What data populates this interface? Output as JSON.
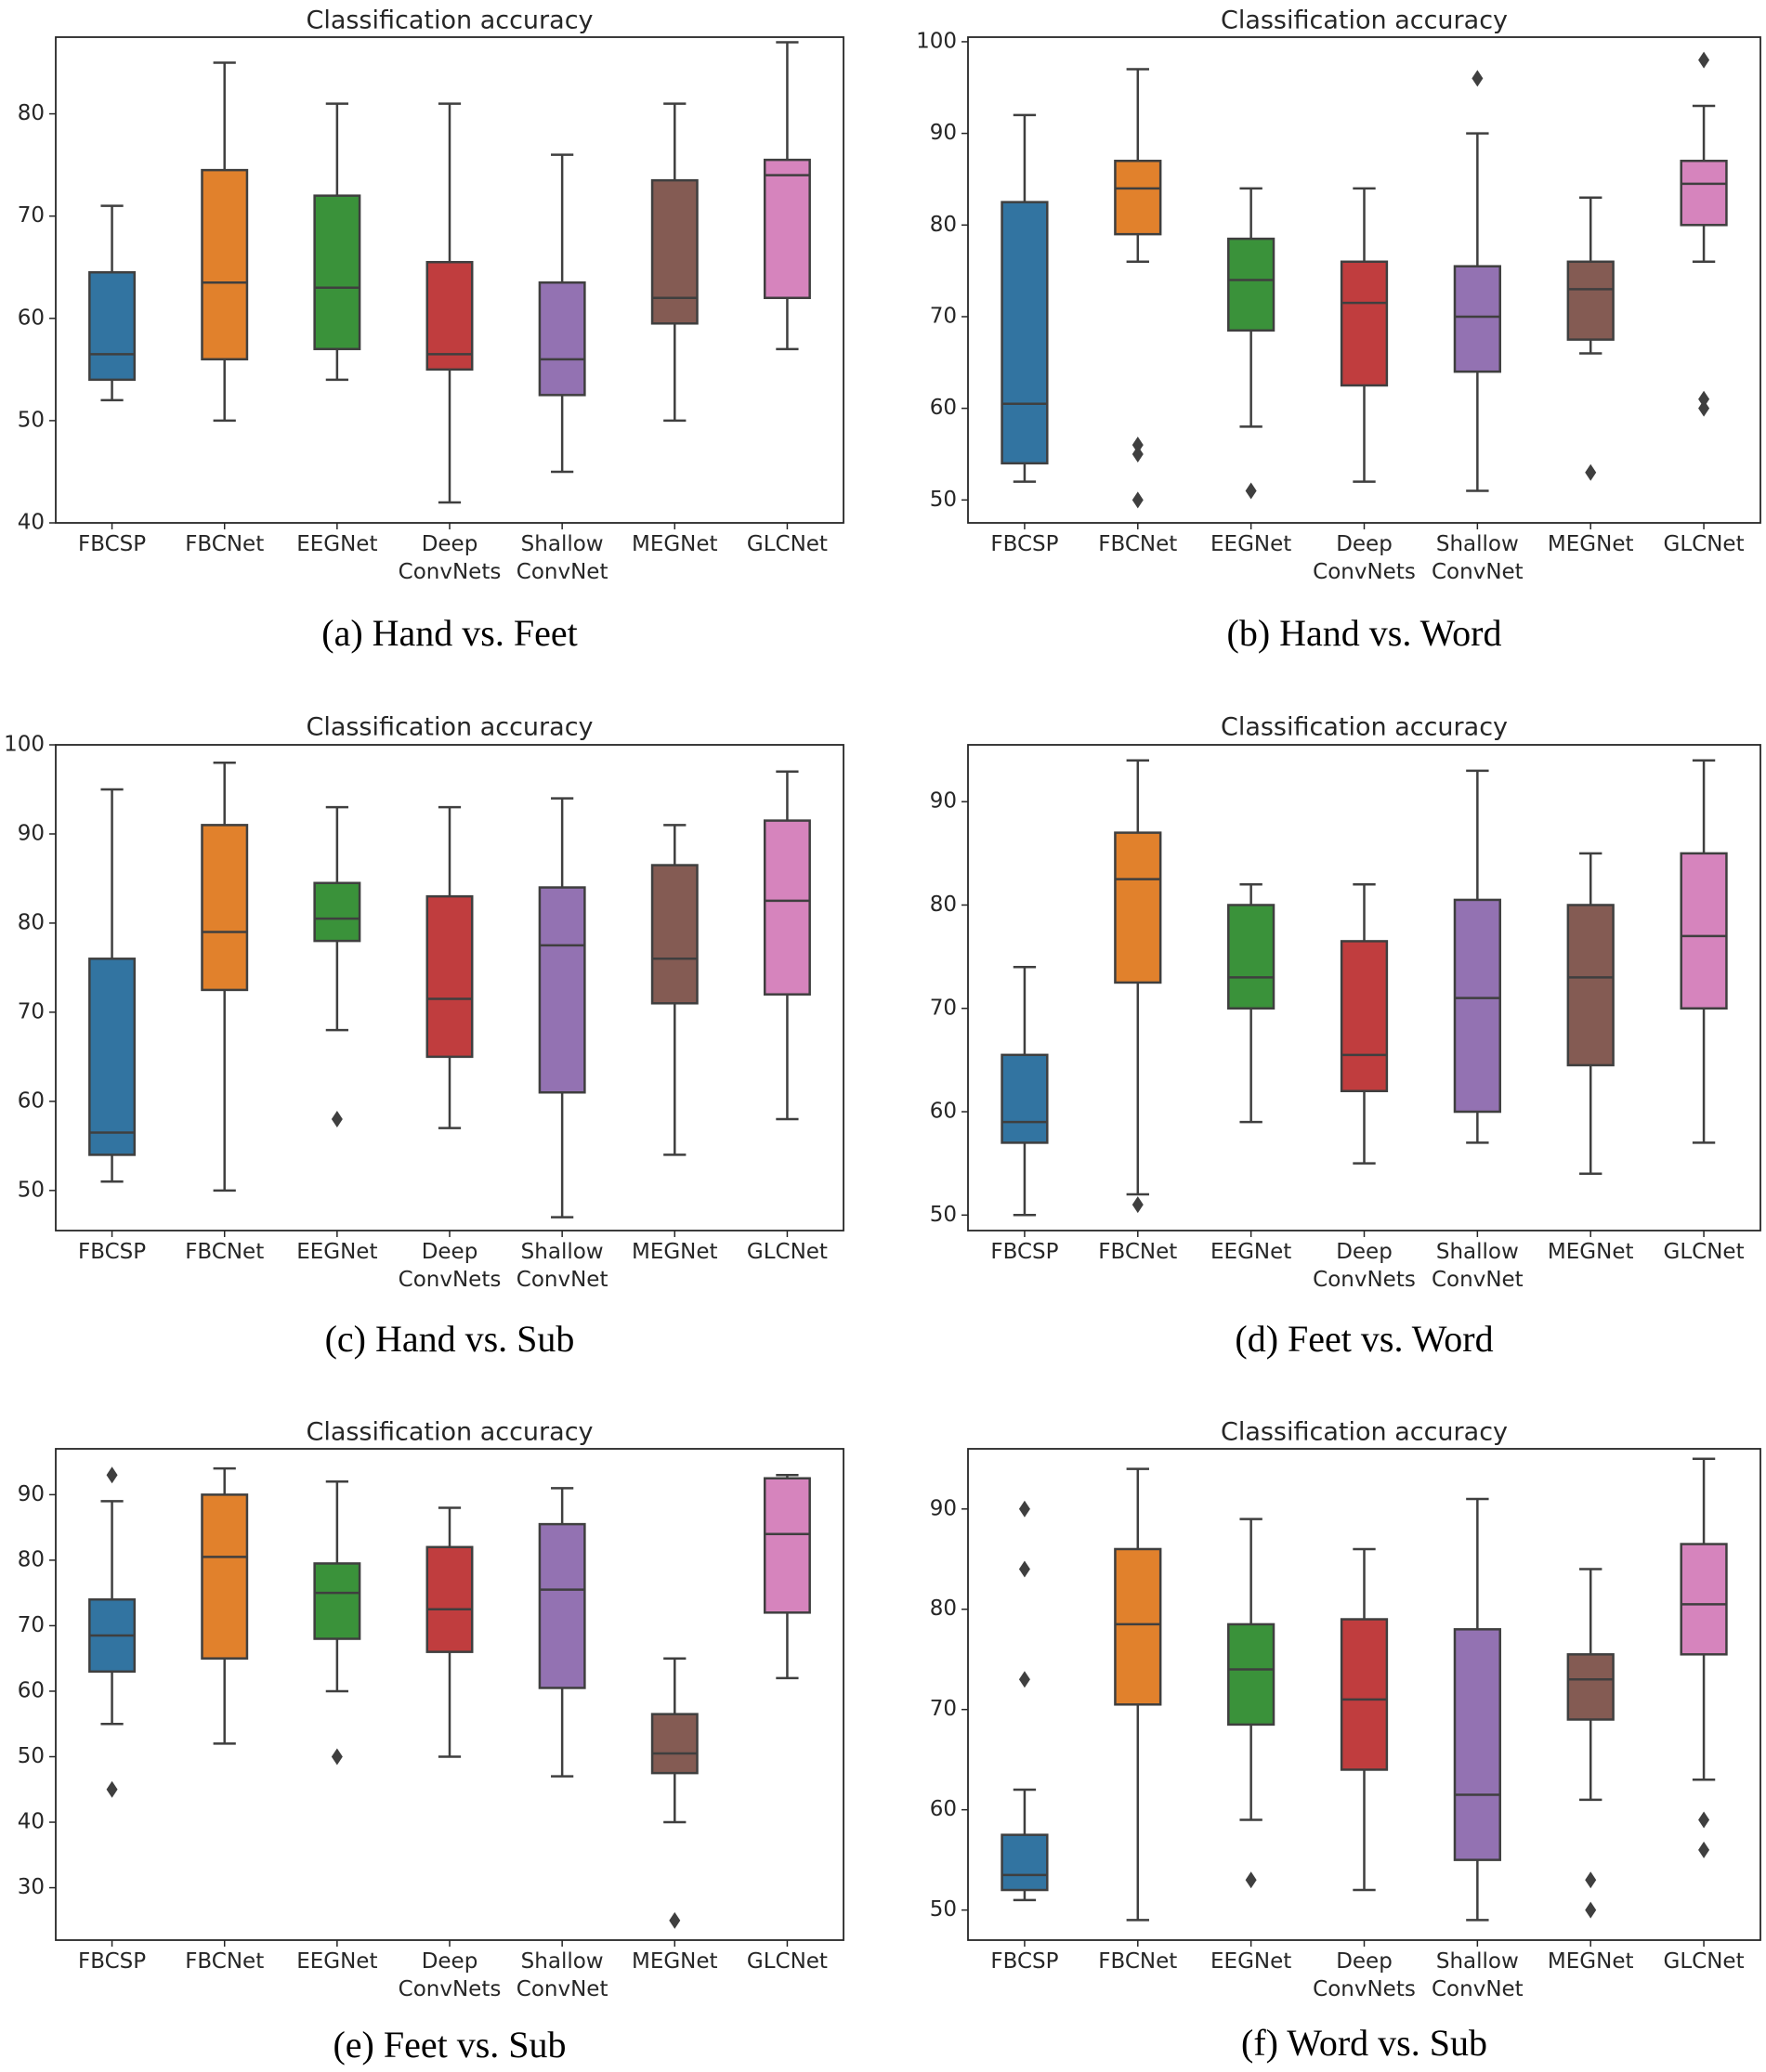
{
  "chart_data": [
    {
      "type": "box",
      "title": "Classification accuracy",
      "caption": "(a) Hand vs. Feet",
      "ylim": [
        40,
        87.5
      ],
      "yticks": [
        40,
        50,
        60,
        70,
        80
      ],
      "categories": [
        "FBCSP",
        "FBCNet",
        "EEGNet",
        "Deep ConvNets",
        "Shallow ConvNet",
        "MEGNet",
        "GLCNet"
      ],
      "boxes": [
        {
          "min": 52,
          "q1": 54,
          "median": 56.5,
          "q3": 64.5,
          "max": 71,
          "outliers": []
        },
        {
          "min": 50,
          "q1": 56,
          "median": 63.5,
          "q3": 74.5,
          "max": 85,
          "outliers": []
        },
        {
          "min": 54,
          "q1": 57,
          "median": 63,
          "q3": 72,
          "max": 81,
          "outliers": []
        },
        {
          "min": 42,
          "q1": 55,
          "median": 56.5,
          "q3": 65.5,
          "max": 81,
          "outliers": []
        },
        {
          "min": 45,
          "q1": 52.5,
          "median": 56,
          "q3": 63.5,
          "max": 76,
          "outliers": []
        },
        {
          "min": 50,
          "q1": 59.5,
          "median": 62,
          "q3": 73.5,
          "max": 81,
          "outliers": []
        },
        {
          "min": 57,
          "q1": 62,
          "median": 74,
          "q3": 75.5,
          "max": 87,
          "outliers": []
        }
      ]
    },
    {
      "type": "box",
      "title": "Classification accuracy",
      "caption": "(b) Hand vs. Word",
      "ylim": [
        47.5,
        100.5
      ],
      "yticks": [
        50,
        60,
        70,
        80,
        90,
        100
      ],
      "categories": [
        "FBCSP",
        "FBCNet",
        "EEGNet",
        "Deep ConvNets",
        "Shallow ConvNet",
        "MEGNet",
        "GLCNet"
      ],
      "boxes": [
        {
          "min": 52,
          "q1": 54,
          "median": 60.5,
          "q3": 82.5,
          "max": 92,
          "outliers": []
        },
        {
          "min": 76,
          "q1": 79,
          "median": 84,
          "q3": 87,
          "max": 97,
          "outliers": [
            56,
            55,
            50
          ]
        },
        {
          "min": 58,
          "q1": 68.5,
          "median": 74,
          "q3": 78.5,
          "max": 84,
          "outliers": [
            51
          ]
        },
        {
          "min": 52,
          "q1": 62.5,
          "median": 71.5,
          "q3": 76,
          "max": 84,
          "outliers": []
        },
        {
          "min": 51,
          "q1": 64,
          "median": 70,
          "q3": 75.5,
          "max": 90,
          "outliers": [
            96
          ]
        },
        {
          "min": 66,
          "q1": 67.5,
          "median": 73,
          "q3": 76,
          "max": 83,
          "outliers": [
            53
          ]
        },
        {
          "min": 76,
          "q1": 80,
          "median": 84.5,
          "q3": 87,
          "max": 93,
          "outliers": [
            98,
            61,
            60
          ]
        }
      ]
    },
    {
      "type": "box",
      "title": "Classification accuracy",
      "caption": "(c) Hand vs. Sub",
      "ylim": [
        45.5,
        100
      ],
      "yticks": [
        50,
        60,
        70,
        80,
        90,
        100
      ],
      "categories": [
        "FBCSP",
        "FBCNet",
        "EEGNet",
        "Deep ConvNets",
        "Shallow ConvNet",
        "MEGNet",
        "GLCNet"
      ],
      "boxes": [
        {
          "min": 51,
          "q1": 54,
          "median": 56.5,
          "q3": 76,
          "max": 95,
          "outliers": []
        },
        {
          "min": 50,
          "q1": 72.5,
          "median": 79,
          "q3": 91,
          "max": 98,
          "outliers": []
        },
        {
          "min": 68,
          "q1": 78,
          "median": 80.5,
          "q3": 84.5,
          "max": 93,
          "outliers": [
            58
          ]
        },
        {
          "min": 57,
          "q1": 65,
          "median": 71.5,
          "q3": 83,
          "max": 93,
          "outliers": []
        },
        {
          "min": 47,
          "q1": 61,
          "median": 77.5,
          "q3": 84,
          "max": 94,
          "outliers": []
        },
        {
          "min": 54,
          "q1": 71,
          "median": 76,
          "q3": 86.5,
          "max": 91,
          "outliers": []
        },
        {
          "min": 58,
          "q1": 72,
          "median": 82.5,
          "q3": 91.5,
          "max": 97,
          "outliers": []
        }
      ]
    },
    {
      "type": "box",
      "title": "Classification accuracy",
      "caption": "(d) Feet vs. Word",
      "ylim": [
        48.5,
        95.5
      ],
      "yticks": [
        50,
        60,
        70,
        80,
        90
      ],
      "categories": [
        "FBCSP",
        "FBCNet",
        "EEGNet",
        "Deep ConvNets",
        "Shallow ConvNet",
        "MEGNet",
        "GLCNet"
      ],
      "boxes": [
        {
          "min": 50,
          "q1": 57,
          "median": 59,
          "q3": 65.5,
          "max": 74,
          "outliers": []
        },
        {
          "min": 52,
          "q1": 72.5,
          "median": 82.5,
          "q3": 87,
          "max": 94,
          "outliers": [
            51
          ]
        },
        {
          "min": 59,
          "q1": 70,
          "median": 73,
          "q3": 80,
          "max": 82,
          "outliers": []
        },
        {
          "min": 55,
          "q1": 62,
          "median": 65.5,
          "q3": 76.5,
          "max": 82,
          "outliers": []
        },
        {
          "min": 57,
          "q1": 60,
          "median": 71,
          "q3": 80.5,
          "max": 93,
          "outliers": []
        },
        {
          "min": 54,
          "q1": 64.5,
          "median": 73,
          "q3": 80,
          "max": 85,
          "outliers": []
        },
        {
          "min": 57,
          "q1": 70,
          "median": 77,
          "q3": 85,
          "max": 94,
          "outliers": []
        }
      ]
    },
    {
      "type": "box",
      "title": "Classification accuracy",
      "caption": "(e) Feet vs. Sub",
      "ylim": [
        22,
        97
      ],
      "yticks": [
        30,
        40,
        50,
        60,
        70,
        80,
        90
      ],
      "categories": [
        "FBCSP",
        "FBCNet",
        "EEGNet",
        "Deep ConvNets",
        "Shallow ConvNet",
        "MEGNet",
        "GLCNet"
      ],
      "boxes": [
        {
          "min": 55,
          "q1": 63,
          "median": 68.5,
          "q3": 74,
          "max": 89,
          "outliers": [
            93,
            45
          ]
        },
        {
          "min": 52,
          "q1": 65,
          "median": 80.5,
          "q3": 90,
          "max": 94,
          "outliers": []
        },
        {
          "min": 60,
          "q1": 68,
          "median": 75,
          "q3": 79.5,
          "max": 92,
          "outliers": [
            50
          ]
        },
        {
          "min": 50,
          "q1": 66,
          "median": 72.5,
          "q3": 82,
          "max": 88,
          "outliers": []
        },
        {
          "min": 47,
          "q1": 60.5,
          "median": 75.5,
          "q3": 85.5,
          "max": 91,
          "outliers": []
        },
        {
          "min": 40,
          "q1": 47.5,
          "median": 50.5,
          "q3": 56.5,
          "max": 65,
          "outliers": [
            25
          ]
        },
        {
          "min": 62,
          "q1": 72,
          "median": 84,
          "q3": 92.5,
          "max": 93,
          "outliers": []
        }
      ]
    },
    {
      "type": "box",
      "title": "Classification accuracy",
      "caption": "(f) Word vs. Sub",
      "ylim": [
        47,
        96
      ],
      "yticks": [
        50,
        60,
        70,
        80,
        90
      ],
      "categories": [
        "FBCSP",
        "FBCNet",
        "EEGNet",
        "Deep ConvNets",
        "Shallow ConvNet",
        "MEGNet",
        "GLCNet"
      ],
      "boxes": [
        {
          "min": 51,
          "q1": 52,
          "median": 53.5,
          "q3": 57.5,
          "max": 62,
          "outliers": [
            90,
            84,
            73
          ]
        },
        {
          "min": 49,
          "q1": 70.5,
          "median": 78.5,
          "q3": 86,
          "max": 94,
          "outliers": []
        },
        {
          "min": 59,
          "q1": 68.5,
          "median": 74,
          "q3": 78.5,
          "max": 89,
          "outliers": [
            53
          ]
        },
        {
          "min": 52,
          "q1": 64,
          "median": 71,
          "q3": 79,
          "max": 86,
          "outliers": []
        },
        {
          "min": 49,
          "q1": 55,
          "median": 61.5,
          "q3": 78,
          "max": 91,
          "outliers": []
        },
        {
          "min": 61,
          "q1": 69,
          "median": 73,
          "q3": 75.5,
          "max": 84,
          "outliers": [
            53,
            50
          ]
        },
        {
          "min": 63,
          "q1": 75.5,
          "median": 80.5,
          "q3": 86.5,
          "max": 95,
          "outliers": [
            59,
            56
          ]
        }
      ]
    }
  ],
  "colors": [
    "#3274a1",
    "#e1812c",
    "#3a923a",
    "#c03d3e",
    "#9372b2",
    "#845b53",
    "#d684bd"
  ]
}
